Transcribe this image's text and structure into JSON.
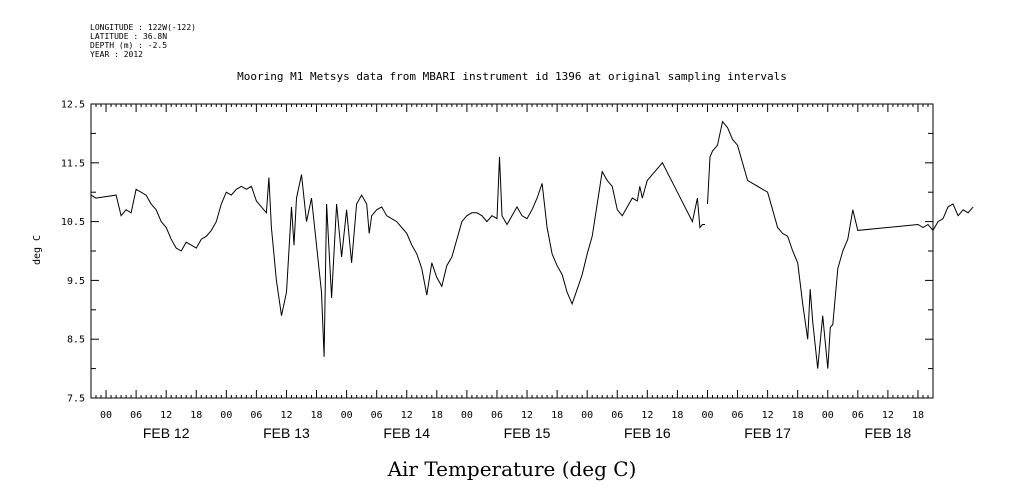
{
  "header": {
    "longitude": "LONGITUDE : 122W(-122)",
    "latitude": "LATITUDE : 36.8N",
    "depth": "DEPTH (m) : -2.5",
    "year": "YEAR : 2012"
  },
  "chart_data": {
    "type": "line",
    "title": "Mooring M1 Metsys data from MBARI instrument id 1396 at original sampling intervals",
    "xlabel": "Air Temperature (deg C)",
    "ylabel": "deg C",
    "ylim": [
      7.5,
      12.5
    ],
    "yticks": [
      "7.5",
      "8.5",
      "9.5",
      "10.5",
      "11.5",
      "12.5"
    ],
    "xlim_hours": [
      -3,
      165
    ],
    "hour_tick_labels": [
      "00",
      "06",
      "12",
      "18"
    ],
    "day_labels": [
      "FEB 12",
      "FEB 13",
      "FEB 14",
      "FEB 15",
      "FEB 16",
      "FEB 17",
      "FEB 18"
    ],
    "grid": false,
    "series": [
      {
        "color": "#000000",
        "points": [
          [
            "Feb 11 21:00",
            10.95
          ],
          [
            "Feb 11 22:00",
            10.9
          ],
          [
            "Feb 12 02:00",
            10.95
          ],
          [
            "Feb 12 03:00",
            10.6
          ],
          [
            "Feb 12 04:00",
            10.7
          ],
          [
            "Feb 12 05:00",
            10.65
          ],
          [
            "Feb 12 06:00",
            11.05
          ],
          [
            "Feb 12 08:00",
            10.95
          ],
          [
            "Feb 12 09:00",
            10.8
          ],
          [
            "Feb 12 10:00",
            10.7
          ],
          [
            "Feb 12 11:00",
            10.5
          ],
          [
            "Feb 12 12:00",
            10.4
          ],
          [
            "Feb 12 13:00",
            10.2
          ],
          [
            "Feb 12 14:00",
            10.05
          ],
          [
            "Feb 12 15:00",
            10.0
          ],
          [
            "Feb 12 16:00",
            10.15
          ],
          [
            "Feb 12 17:00",
            10.1
          ],
          [
            "Feb 12 18:00",
            10.05
          ],
          [
            "Feb 12 19:00",
            10.2
          ],
          [
            "Feb 12 20:00",
            10.25
          ],
          [
            "Feb 12 21:00",
            10.35
          ],
          [
            "Feb 12 22:00",
            10.5
          ],
          [
            "Feb 12 23:00",
            10.8
          ],
          [
            "Feb 13 00:00",
            11.0
          ],
          [
            "Feb 13 01:00",
            10.95
          ],
          [
            "Feb 13 02:00",
            11.05
          ],
          [
            "Feb 13 03:00",
            11.1
          ],
          [
            "Feb 13 04:00",
            11.05
          ],
          [
            "Feb 13 05:00",
            11.1
          ],
          [
            "Feb 13 06:00",
            10.85
          ],
          [
            "Feb 13 07:00",
            10.75
          ],
          [
            "Feb 13 08:00",
            10.65
          ],
          [
            "Feb 13 08:30",
            11.25
          ],
          [
            "Feb 13 09:00",
            10.4
          ],
          [
            "Feb 13 10:00",
            9.5
          ],
          [
            "Feb 13 11:00",
            8.9
          ],
          [
            "Feb 13 12:00",
            9.3
          ],
          [
            "Feb 13 13:00",
            10.75
          ],
          [
            "Feb 13 13:30",
            10.1
          ],
          [
            "Feb 13 14:00",
            10.9
          ],
          [
            "Feb 13 15:00",
            11.3
          ],
          [
            "Feb 13 16:00",
            10.5
          ],
          [
            "Feb 13 17:00",
            10.9
          ],
          [
            "Feb 13 18:00",
            10.1
          ],
          [
            "Feb 13 19:00",
            9.3
          ],
          [
            "Feb 13 19:30",
            8.2
          ],
          [
            "Feb 13 20:00",
            10.8
          ],
          [
            "Feb 13 21:00",
            9.2
          ],
          [
            "Feb 13 22:00",
            10.8
          ],
          [
            "Feb 13 23:00",
            9.9
          ],
          [
            "Feb 14 00:00",
            10.7
          ],
          [
            "Feb 14 01:00",
            9.8
          ],
          [
            "Feb 14 02:00",
            10.8
          ],
          [
            "Feb 14 03:00",
            10.95
          ],
          [
            "Feb 14 04:00",
            10.8
          ],
          [
            "Feb 14 04:30",
            10.3
          ],
          [
            "Feb 14 05:00",
            10.6
          ],
          [
            "Feb 14 06:00",
            10.7
          ],
          [
            "Feb 14 07:00",
            10.75
          ],
          [
            "Feb 14 08:00",
            10.6
          ],
          [
            "Feb 14 09:00",
            10.55
          ],
          [
            "Feb 14 10:00",
            10.5
          ],
          [
            "Feb 14 11:00",
            10.4
          ],
          [
            "Feb 14 12:00",
            10.3
          ],
          [
            "Feb 14 13:00",
            10.1
          ],
          [
            "Feb 14 14:00",
            9.95
          ],
          [
            "Feb 14 15:00",
            9.7
          ],
          [
            "Feb 14 16:00",
            9.25
          ],
          [
            "Feb 14 17:00",
            9.8
          ],
          [
            "Feb 14 18:00",
            9.55
          ],
          [
            "Feb 14 19:00",
            9.4
          ],
          [
            "Feb 14 20:00",
            9.75
          ],
          [
            "Feb 14 21:00",
            9.9
          ],
          [
            "Feb 14 22:00",
            10.2
          ],
          [
            "Feb 14 23:00",
            10.5
          ],
          [
            "Feb 15 00:00",
            10.6
          ],
          [
            "Feb 15 01:00",
            10.65
          ],
          [
            "Feb 15 02:00",
            10.65
          ],
          [
            "Feb 15 03:00",
            10.6
          ],
          [
            "Feb 15 04:00",
            10.5
          ],
          [
            "Feb 15 05:00",
            10.6
          ],
          [
            "Feb 15 06:00",
            10.55
          ],
          [
            "Feb 15 06:30",
            11.6
          ],
          [
            "Feb 15 07:00",
            10.6
          ],
          [
            "Feb 15 08:00",
            10.45
          ],
          [
            "Feb 15 09:00",
            10.6
          ],
          [
            "Feb 15 10:00",
            10.75
          ],
          [
            "Feb 15 11:00",
            10.6
          ],
          [
            "Feb 15 12:00",
            10.55
          ],
          [
            "Feb 15 13:00",
            10.7
          ],
          [
            "Feb 15 14:00",
            10.9
          ],
          [
            "Feb 15 15:00",
            11.15
          ],
          [
            "Feb 15 16:00",
            10.4
          ],
          [
            "Feb 15 17:00",
            9.95
          ],
          [
            "Feb 15 18:00",
            9.75
          ],
          [
            "Feb 15 19:00",
            9.6
          ],
          [
            "Feb 15 20:00",
            9.3
          ],
          [
            "Feb 15 21:00",
            9.1
          ],
          [
            "Feb 15 22:00",
            9.35
          ],
          [
            "Feb 15 23:00",
            9.6
          ],
          [
            "Feb 16 00:00",
            9.95
          ],
          [
            "Feb 16 01:00",
            10.25
          ],
          [
            "Feb 16 02:00",
            10.8
          ],
          [
            "Feb 16 03:00",
            11.35
          ],
          [
            "Feb 16 04:00",
            11.2
          ],
          [
            "Feb 16 05:00",
            11.1
          ],
          [
            "Feb 16 06:00",
            10.7
          ],
          [
            "Feb 16 07:00",
            10.6
          ],
          [
            "Feb 16 08:00",
            10.75
          ],
          [
            "Feb 16 09:00",
            10.9
          ],
          [
            "Feb 16 10:00",
            10.85
          ],
          [
            "Feb 16 10:30",
            11.1
          ],
          [
            "Feb 16 11:00",
            10.9
          ],
          [
            "Feb 16 12:00",
            11.2
          ],
          [
            "Feb 16 13:00",
            11.3
          ],
          [
            "Feb 16 15:00",
            11.5
          ],
          [
            "Feb 16 18:00",
            11.0
          ],
          [
            "Feb 16 21:00",
            10.5
          ],
          [
            "Feb 16 22:00",
            10.9
          ],
          [
            "Feb 16 22:30",
            10.4
          ],
          [
            "Feb 16 23:00",
            10.45
          ],
          [
            "Feb 16 23:30",
            10.45
          ]
        ]
      },
      {
        "color": "#000000",
        "points": [
          [
            "Feb 17 00:00",
            10.8
          ],
          [
            "Feb 17 00:30",
            11.6
          ],
          [
            "Feb 17 01:00",
            11.7
          ],
          [
            "Feb 17 02:00",
            11.8
          ],
          [
            "Feb 17 03:00",
            12.2
          ],
          [
            "Feb 17 04:00",
            12.1
          ],
          [
            "Feb 17 05:00",
            11.9
          ],
          [
            "Feb 17 06:00",
            11.8
          ],
          [
            "Feb 17 07:00",
            11.5
          ],
          [
            "Feb 17 08:00",
            11.2
          ],
          [
            "Feb 17 12:00",
            11.0
          ],
          [
            "Feb 17 13:00",
            10.7
          ],
          [
            "Feb 17 14:00",
            10.4
          ],
          [
            "Feb 17 15:00",
            10.3
          ],
          [
            "Feb 17 16:00",
            10.25
          ],
          [
            "Feb 17 17:00",
            10.0
          ],
          [
            "Feb 17 18:00",
            9.8
          ],
          [
            "Feb 17 19:00",
            9.1
          ],
          [
            "Feb 17 20:00",
            8.5
          ],
          [
            "Feb 17 20:30",
            9.35
          ],
          [
            "Feb 17 21:00",
            8.8
          ],
          [
            "Feb 17 22:00",
            8.0
          ],
          [
            "Feb 17 23:00",
            8.9
          ],
          [
            "Feb 18 00:00",
            8.0
          ],
          [
            "Feb 18 00:30",
            8.7
          ],
          [
            "Feb 18 01:00",
            8.75
          ],
          [
            "Feb 18 02:00",
            9.7
          ],
          [
            "Feb 18 03:00",
            10.0
          ],
          [
            "Feb 18 04:00",
            10.2
          ],
          [
            "Feb 18 05:00",
            10.7
          ],
          [
            "Feb 18 06:00",
            10.35
          ],
          [
            "Feb 18 18:00",
            10.45
          ],
          [
            "Feb 18 19:00",
            10.4
          ],
          [
            "Feb 18 20:00",
            10.45
          ],
          [
            "Feb 18 21:00",
            10.35
          ],
          [
            "Feb 18 22:00",
            10.5
          ],
          [
            "Feb 18 23:00",
            10.55
          ],
          [
            "Feb 19 00:00",
            10.75
          ],
          [
            "Feb 19 01:00",
            10.8
          ],
          [
            "Feb 19 02:00",
            10.6
          ],
          [
            "Feb 19 03:00",
            10.7
          ],
          [
            "Feb 19 04:00",
            10.65
          ],
          [
            "Feb 19 05:00",
            10.75
          ]
        ]
      }
    ]
  }
}
